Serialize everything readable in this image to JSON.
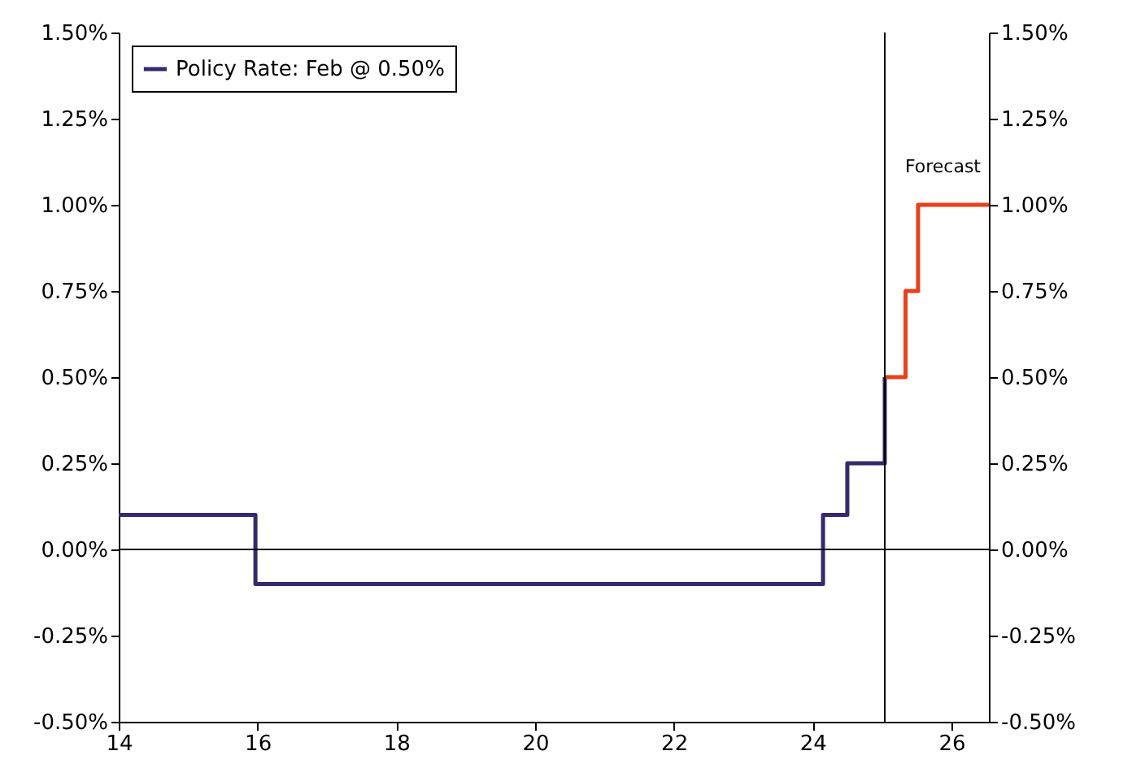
{
  "chart_data": {
    "type": "step",
    "xlim": [
      14,
      26.54
    ],
    "xticks": [
      14,
      16,
      18,
      20,
      22,
      24,
      26
    ],
    "ylim": [
      -0.5,
      1.5
    ],
    "yticks": [
      {
        "value": -0.5,
        "label": "-0.50%"
      },
      {
        "value": -0.25,
        "label": "-0.25%"
      },
      {
        "value": 0,
        "label": "0.00%"
      },
      {
        "value": 0.25,
        "label": "0.25%"
      },
      {
        "value": 0.5,
        "label": "0.50%"
      },
      {
        "value": 0.75,
        "label": "0.75%"
      },
      {
        "value": 1,
        "label": "1.00%"
      },
      {
        "value": 1.25,
        "label": "1.25%"
      },
      {
        "value": 1.5,
        "label": "1.50%"
      }
    ],
    "y2lim": [
      -0.5,
      1.5
    ],
    "y2ticks": [
      {
        "value": -0.5,
        "label": "-0.50%"
      },
      {
        "value": -0.25,
        "label": "-0.25%"
      },
      {
        "value": 0,
        "label": "0.00%"
      },
      {
        "value": 0.25,
        "label": "0.25%"
      },
      {
        "value": 0.5,
        "label": "0.50%"
      },
      {
        "value": 0.75,
        "label": "0.75%"
      },
      {
        "value": 1,
        "label": "1.00%"
      },
      {
        "value": 1.25,
        "label": "1.25%"
      },
      {
        "value": 1.5,
        "label": "1.50%"
      }
    ],
    "series": [
      {
        "name": "Policy Rate: Feb @ 0.50%",
        "color": "#352a6e",
        "x": [
          14,
          15.97,
          24.15,
          24.5,
          25.04
        ],
        "values": [
          0.1,
          -0.1,
          0.1,
          0.25,
          0.5
        ]
      },
      {
        "color": "#e8401c",
        "x": [
          25.04,
          25.34,
          25.52,
          26.54
        ],
        "values": [
          0.5,
          0.75,
          1.0,
          1.0
        ]
      }
    ],
    "ref_lines": [
      {
        "axis": "y",
        "value": 0,
        "color": "#000000"
      },
      {
        "axis": "x",
        "value": 25.04,
        "color": "#000000"
      }
    ],
    "annotations": [
      "Forecast"
    ],
    "legend": "top left",
    "grid": false,
    "line_style": "solid"
  }
}
